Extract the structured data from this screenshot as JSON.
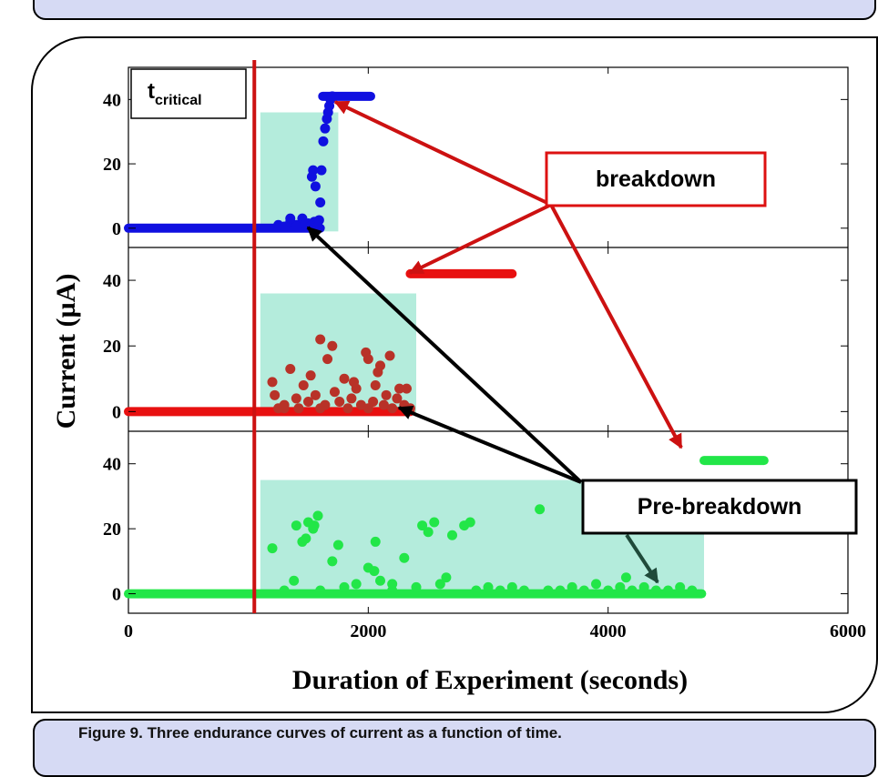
{
  "caption": "Figure 9. Three endurance curves of current as a function of time.",
  "chart_data": {
    "type": "scatter",
    "xlabel": "Duration of Experiment (seconds)",
    "ylabel": "Current (µA)",
    "xlim": [
      0,
      6000
    ],
    "x_ticks": [
      "0",
      "2000",
      "4000",
      "6000"
    ],
    "y_ticks": [
      "0",
      "20",
      "40"
    ],
    "grid": false,
    "colors": {
      "top": "#1010e0",
      "middle": "#e81010",
      "middle_scatter": "#b83228",
      "bottom": "#22e648",
      "highlight": "#b4ecdc",
      "critical_line": "#cc1111"
    },
    "annotations": {
      "t_critical_main": "t",
      "t_critical_sub": "critical",
      "breakdown": "breakdown",
      "pre_breakdown": "Pre-breakdown"
    },
    "t_critical": 1050,
    "panels": [
      {
        "id": "top",
        "ylim": [
          -6,
          50
        ],
        "pre_breakdown_region": {
          "x": [
            1100,
            1750
          ],
          "y": [
            -1,
            36
          ]
        },
        "baseline": {
          "x": [
            0,
            1600
          ],
          "y": 0
        },
        "breakdown_level": {
          "x": [
            1620,
            2020
          ],
          "y": 41
        },
        "scatter": [
          [
            1250,
            1
          ],
          [
            1300,
            0.5
          ],
          [
            1350,
            2
          ],
          [
            1400,
            1
          ],
          [
            1450,
            3
          ],
          [
            1500,
            1.5
          ],
          [
            1550,
            2
          ],
          [
            1570,
            1
          ],
          [
            1590,
            2.5
          ],
          [
            1600,
            8
          ],
          [
            1610,
            18
          ],
          [
            1625,
            27
          ],
          [
            1640,
            31
          ],
          [
            1655,
            34
          ],
          [
            1665,
            36
          ],
          [
            1675,
            38
          ],
          [
            1685,
            40
          ],
          [
            1700,
            41
          ],
          [
            1530,
            16
          ],
          [
            1540,
            18
          ],
          [
            1560,
            13
          ],
          [
            1350,
            3
          ],
          [
            1400,
            0.5
          ],
          [
            1470,
            1
          ],
          [
            1520,
            0.5
          ],
          [
            1580,
            0.5
          ]
        ]
      },
      {
        "id": "middle",
        "ylim": [
          -6,
          50
        ],
        "pre_breakdown_region": {
          "x": [
            1100,
            2400
          ],
          "y": [
            -1,
            36
          ]
        },
        "baseline": {
          "x": [
            0,
            2350
          ],
          "y": 0
        },
        "breakdown_level": {
          "x": [
            2350,
            3200
          ],
          "y": 42
        },
        "scatter": [
          [
            1200,
            9
          ],
          [
            1220,
            5
          ],
          [
            1300,
            2
          ],
          [
            1350,
            13
          ],
          [
            1400,
            4
          ],
          [
            1420,
            1
          ],
          [
            1460,
            8
          ],
          [
            1500,
            3
          ],
          [
            1520,
            11
          ],
          [
            1560,
            5
          ],
          [
            1600,
            22
          ],
          [
            1640,
            2
          ],
          [
            1660,
            16
          ],
          [
            1700,
            20
          ],
          [
            1720,
            6
          ],
          [
            1760,
            3
          ],
          [
            1800,
            10
          ],
          [
            1830,
            1
          ],
          [
            1860,
            4
          ],
          [
            1880,
            9
          ],
          [
            1900,
            7
          ],
          [
            1940,
            2
          ],
          [
            1980,
            18
          ],
          [
            2000,
            16
          ],
          [
            2040,
            3
          ],
          [
            2060,
            8
          ],
          [
            2080,
            12
          ],
          [
            2100,
            14
          ],
          [
            2130,
            2
          ],
          [
            2150,
            5
          ],
          [
            2180,
            17
          ],
          [
            2200,
            1
          ],
          [
            2240,
            4
          ],
          [
            2260,
            7
          ],
          [
            2300,
            2
          ],
          [
            2320,
            7
          ],
          [
            2350,
            1
          ],
          [
            1250,
            1
          ],
          [
            1300,
            1
          ],
          [
            1600,
            1
          ],
          [
            2000,
            1
          ]
        ]
      },
      {
        "id": "bottom",
        "ylim": [
          -6,
          50
        ],
        "pre_breakdown_region": {
          "x": [
            1100,
            4800
          ],
          "y": [
            -1,
            35
          ]
        },
        "baseline": {
          "x": [
            0,
            4780
          ],
          "y": 0
        },
        "breakdown_level": {
          "x": [
            4800,
            5300
          ],
          "y": 41
        },
        "scatter": [
          [
            1200,
            14
          ],
          [
            1300,
            1
          ],
          [
            1380,
            4
          ],
          [
            1400,
            21
          ],
          [
            1450,
            16
          ],
          [
            1480,
            17
          ],
          [
            1500,
            22
          ],
          [
            1550,
            21
          ],
          [
            1580,
            24
          ],
          [
            1540,
            20
          ],
          [
            1700,
            10
          ],
          [
            1750,
            15
          ],
          [
            1800,
            2
          ],
          [
            1900,
            3
          ],
          [
            2000,
            8
          ],
          [
            2050,
            7
          ],
          [
            2060,
            16
          ],
          [
            2100,
            4
          ],
          [
            2200,
            1
          ],
          [
            2300,
            11
          ],
          [
            2400,
            2
          ],
          [
            2450,
            21
          ],
          [
            2500,
            19
          ],
          [
            2550,
            22
          ],
          [
            2600,
            3
          ],
          [
            2700,
            18
          ],
          [
            2800,
            21
          ],
          [
            2850,
            22
          ],
          [
            2900,
            1
          ],
          [
            3000,
            2
          ],
          [
            3100,
            1
          ],
          [
            3200,
            2
          ],
          [
            3300,
            1
          ],
          [
            3430,
            26
          ],
          [
            3500,
            1
          ],
          [
            3700,
            2
          ],
          [
            3800,
            1
          ],
          [
            3900,
            3
          ],
          [
            4000,
            1
          ],
          [
            4100,
            2
          ],
          [
            4200,
            1
          ],
          [
            4300,
            2
          ],
          [
            4400,
            1
          ],
          [
            4500,
            1
          ],
          [
            4600,
            2
          ],
          [
            4700,
            1
          ],
          [
            1600,
            1
          ],
          [
            2200,
            3
          ],
          [
            2650,
            5
          ],
          [
            3600,
            1
          ],
          [
            4150,
            5
          ]
        ]
      }
    ]
  }
}
